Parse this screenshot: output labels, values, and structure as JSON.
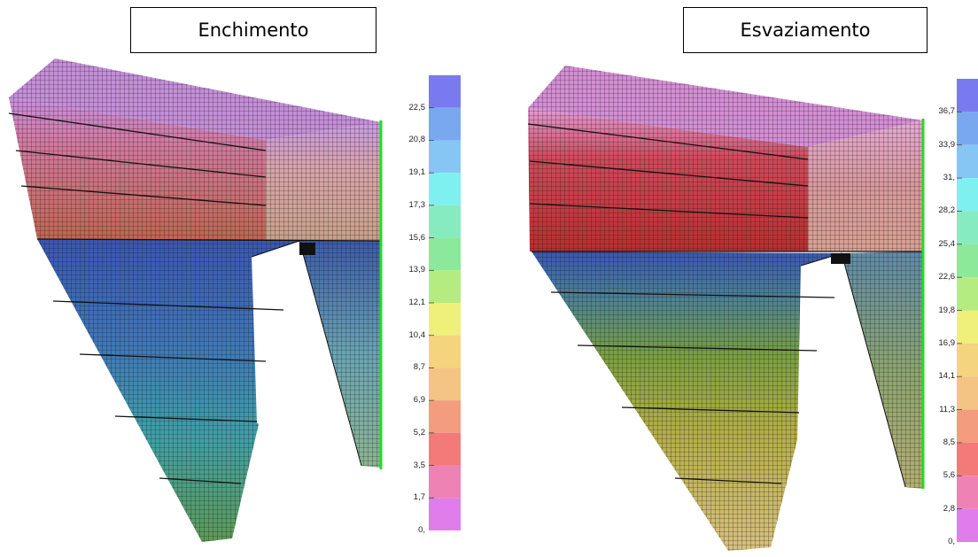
{
  "panels": [
    {
      "title": "Enchimento",
      "scale_labels": [
        "22,5",
        "20,8",
        "19,1",
        "17,3",
        "15,6",
        "13,9",
        "12,1",
        "10,4",
        "8,7",
        "6,9",
        "5,2",
        "3,5",
        "1,7",
        "0,"
      ],
      "scale_colors": [
        "#7a7af0",
        "#7aa8f0",
        "#86c6f4",
        "#7ef0f0",
        "#86ecc0",
        "#8ce89a",
        "#b4ec82",
        "#eef07a",
        "#f4d47c",
        "#f4c484",
        "#f49c7e",
        "#f47a7a",
        "#ee82b4",
        "#e07cec"
      ]
    },
    {
      "title": "Esvaziamento",
      "scale_labels": [
        "36,7",
        "33,9",
        "31,",
        "28,2",
        "25,4",
        "22,6",
        "19,8",
        "16,9",
        "14,1",
        "11,3",
        "8,5",
        "5,6",
        "2,8",
        "0,"
      ],
      "scale_colors": [
        "#7a7af0",
        "#7aa8f0",
        "#86c6f4",
        "#7ef0f0",
        "#86ecc0",
        "#8ce89a",
        "#b4ec82",
        "#eef07a",
        "#f4d47c",
        "#f4c484",
        "#f49c7e",
        "#f47a7a",
        "#ee82b4",
        "#e07cec"
      ]
    }
  ]
}
